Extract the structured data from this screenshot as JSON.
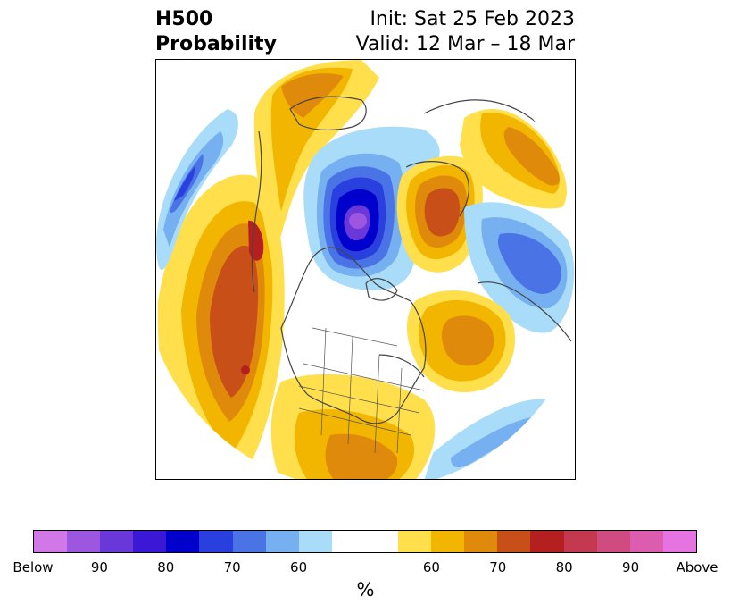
{
  "title": {
    "left_line1": "H500",
    "left_line2": "Probability",
    "right_line1": "Init: Sat 25 Feb 2023",
    "right_line2": "Valid: 12 Mar – 18 Mar"
  },
  "map": {
    "projection": "north-polar-stereographic",
    "features": [
      "coastlines",
      "country-borders",
      "us-state-borders"
    ],
    "anomalies": [
      {
        "region": "Northeast Pacific / Gulf of Alaska",
        "sign": "above",
        "peak_percent": 80
      },
      {
        "region": "Arctic Ocean / Northern Canada",
        "sign": "below",
        "peak_percent": 90
      },
      {
        "region": "Northern Europe / Scandinavia",
        "sign": "above",
        "peak_percent": 70
      },
      {
        "region": "North Atlantic (south of Greenland)",
        "sign": "above",
        "peak_percent": 70
      },
      {
        "region": "Western Russia",
        "sign": "below",
        "peak_percent": 70
      },
      {
        "region": "Southern United States",
        "sign": "above",
        "peak_percent": 70
      },
      {
        "region": "East Asia",
        "sign": "above",
        "peak_percent": 70
      },
      {
        "region": "Western Pacific",
        "sign": "below",
        "peak_percent": 70
      }
    ]
  },
  "colorbar": {
    "colors": [
      "#d277e8",
      "#9c56e0",
      "#6a38d8",
      "#3b18d6",
      "#0000cc",
      "#2a40de",
      "#4a74e6",
      "#76b0f0",
      "#a9dcf8",
      "#ffffff",
      "#ffe04c",
      "#f2b600",
      "#e08a0c",
      "#c85018",
      "#b42020",
      "#c43850",
      "#d04c80",
      "#dc5cb0",
      "#e674e0"
    ],
    "tick_labels": [
      "Below",
      "90",
      "80",
      "70",
      "60",
      "60",
      "70",
      "80",
      "90",
      "Above"
    ],
    "unit": "%"
  }
}
